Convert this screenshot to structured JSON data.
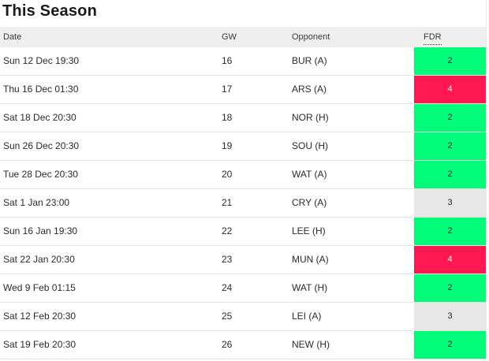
{
  "section": {
    "title": "This Season"
  },
  "table": {
    "columns": {
      "date": "Date",
      "gw": "GW",
      "opponent": "Opponent",
      "fdr": "FDR"
    },
    "rows": [
      {
        "date": "Sun 12 Dec 19:30",
        "gw": "16",
        "opponent": "BUR (A)",
        "fdr": "2"
      },
      {
        "date": "Thu 16 Dec 01:30",
        "gw": "17",
        "opponent": "ARS (A)",
        "fdr": "4"
      },
      {
        "date": "Sat 18 Dec 20:30",
        "gw": "18",
        "opponent": "NOR (H)",
        "fdr": "2"
      },
      {
        "date": "Sun 26 Dec 20:30",
        "gw": "19",
        "opponent": "SOU (H)",
        "fdr": "2"
      },
      {
        "date": "Tue 28 Dec 20:30",
        "gw": "20",
        "opponent": "WAT (A)",
        "fdr": "2"
      },
      {
        "date": "Sat 1 Jan 23:00",
        "gw": "21",
        "opponent": "CRY (A)",
        "fdr": "3"
      },
      {
        "date": "Sun 16 Jan 19:30",
        "gw": "22",
        "opponent": "LEE (H)",
        "fdr": "2"
      },
      {
        "date": "Sat 22 Jan 20:30",
        "gw": "23",
        "opponent": "MUN (A)",
        "fdr": "4"
      },
      {
        "date": "Wed 9 Feb 01:15",
        "gw": "24",
        "opponent": "WAT (H)",
        "fdr": "2"
      },
      {
        "date": "Sat 12 Feb 20:30",
        "gw": "25",
        "opponent": "LEI (A)",
        "fdr": "3"
      },
      {
        "date": "Sat 19 Feb 20:30",
        "gw": "26",
        "opponent": "NEW (H)",
        "fdr": "2"
      }
    ]
  },
  "colors": {
    "fdr_2": "#01fc7a",
    "fdr_3": "#e7e7e7",
    "fdr_4": "#ff1751",
    "header_bg": "#efefef"
  }
}
